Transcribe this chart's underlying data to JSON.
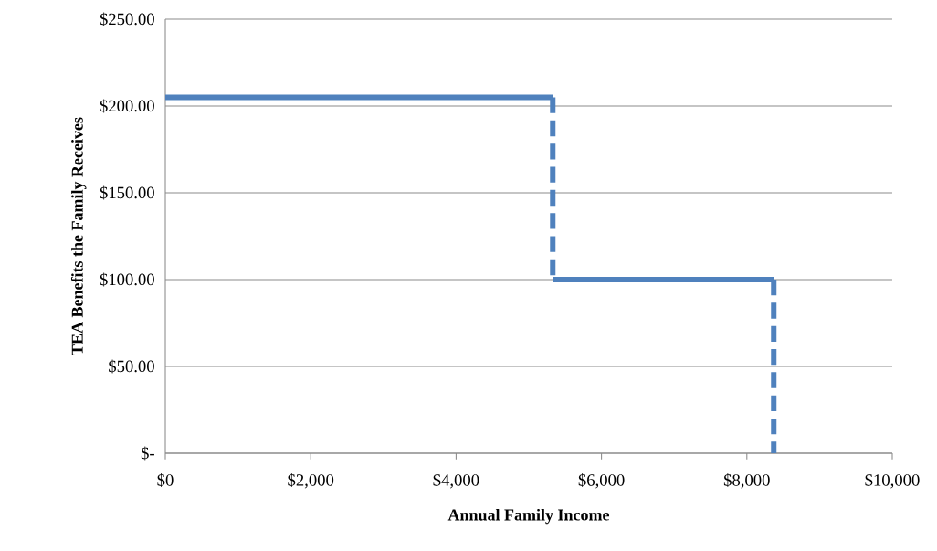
{
  "chart_data": {
    "type": "line",
    "xlabel": "Annual Family Income",
    "ylabel": "TEA Benefits the Family Receives",
    "xlim": [
      0,
      10000
    ],
    "ylim": [
      0,
      250
    ],
    "xticks": [
      {
        "value": 0,
        "label": "$0"
      },
      {
        "value": 2000,
        "label": "$2,000"
      },
      {
        "value": 4000,
        "label": "$4,000"
      },
      {
        "value": 6000,
        "label": "$6,000"
      },
      {
        "value": 8000,
        "label": "$8,000"
      },
      {
        "value": 10000,
        "label": "$10,000"
      }
    ],
    "yticks": [
      {
        "value": 0,
        "label": "$-"
      },
      {
        "value": 50,
        "label": "$50.00"
      },
      {
        "value": 100,
        "label": "$100.00"
      },
      {
        "value": 150,
        "label": "$150.00"
      },
      {
        "value": 200,
        "label": "$200.00"
      },
      {
        "value": 250,
        "label": "$250.00"
      }
    ],
    "grid": "y",
    "series": [
      {
        "color": "#4f81bd",
        "line_style": "solid",
        "x": [
          0,
          5330
        ],
        "values": [
          205,
          205
        ]
      },
      {
        "color": "#4f81bd",
        "line_style": "dashed",
        "x": [
          5330,
          5330
        ],
        "values": [
          205,
          100
        ]
      },
      {
        "color": "#4f81bd",
        "line_style": "solid",
        "x": [
          5330,
          8370
        ],
        "values": [
          100,
          100
        ]
      },
      {
        "color": "#4f81bd",
        "line_style": "dashed",
        "x": [
          8370,
          8370
        ],
        "values": [
          100,
          0
        ]
      }
    ]
  }
}
